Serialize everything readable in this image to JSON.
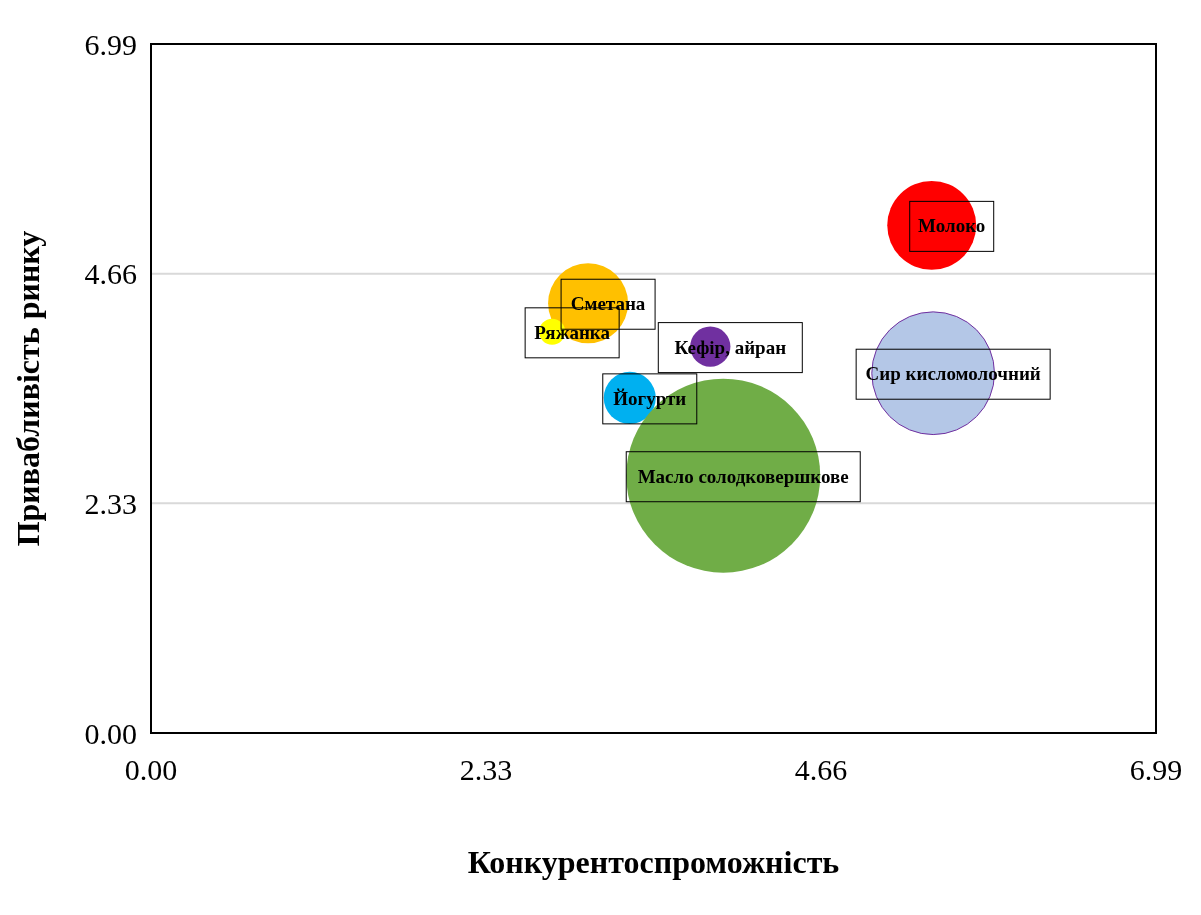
{
  "chart_data": {
    "type": "bubble",
    "xlabel": "Конкурентоспроможність",
    "ylabel": "Привабливість ринку",
    "xlim": [
      0,
      6.99
    ],
    "ylim": [
      0,
      6.99
    ],
    "xticks": [
      {
        "value": 0,
        "label": "0.00"
      },
      {
        "value": 2.33,
        "label": "2.33"
      },
      {
        "value": 4.66,
        "label": "4.66"
      },
      {
        "value": 6.99,
        "label": "6.99"
      }
    ],
    "yticks": [
      {
        "value": 0,
        "label": "0.00"
      },
      {
        "value": 2.33,
        "label": "2.33"
      },
      {
        "value": 4.66,
        "label": "4.66"
      },
      {
        "value": 6.99,
        "label": "6.99"
      }
    ],
    "grid": "y",
    "legend": false,
    "series": [
      {
        "name": "Молоко",
        "color": "#ff0000",
        "x": [
          5.43
        ],
        "values": [
          5.15
        ],
        "sizes": [
          0.21
        ]
      },
      {
        "name": "Сметана",
        "color": "#ffc000",
        "x": [
          3.04
        ],
        "values": [
          4.36
        ],
        "sizes": [
          0.17
        ]
      },
      {
        "name": "Ряжанка",
        "color": "#ffff00",
        "x": [
          2.79
        ],
        "values": [
          4.07
        ],
        "sizes": [
          0.018
        ]
      },
      {
        "name": "Кефір, айран",
        "color": "#7030a0",
        "x": [
          3.89
        ],
        "values": [
          3.92
        ],
        "sizes": [
          0.043
        ]
      },
      {
        "name": "Сир кисломолочний",
        "color": "#b4c7e7",
        "x": [
          5.44
        ],
        "values": [
          3.65
        ],
        "sizes": [
          0.4
        ]
      },
      {
        "name": "Йогурти",
        "color": "#00b0f0",
        "x": [
          3.33
        ],
        "values": [
          3.4
        ],
        "sizes": [
          0.072
        ]
      },
      {
        "name": "Масло солодковершкове",
        "color": "#70ad47",
        "x": [
          3.98
        ],
        "values": [
          2.61
        ],
        "sizes": [
          1
        ]
      }
    ]
  }
}
